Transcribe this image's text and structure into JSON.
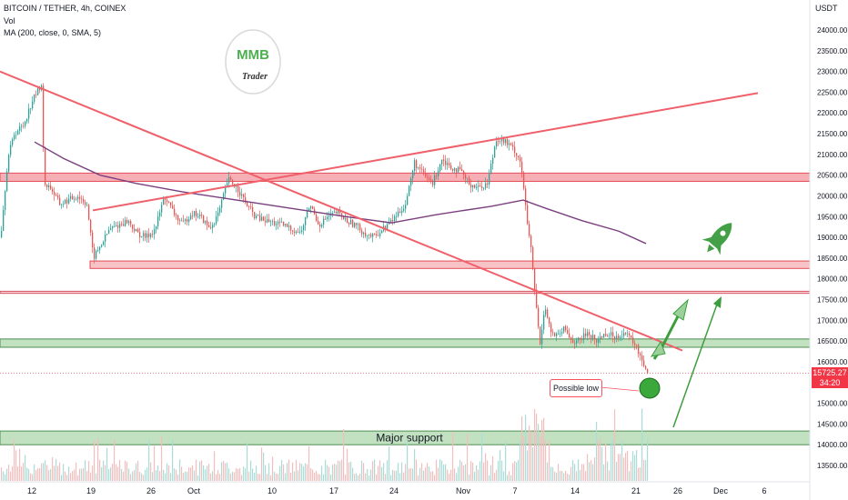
{
  "header": {
    "symbol_line": "BITCOIN / TETHER, 4h, COINEX",
    "volume_label": "Vol",
    "indicator_line": "MA (200, close, 0, SMA, 5)"
  },
  "logo": {
    "text_top": "MMB",
    "text_bottom": "Trader"
  },
  "price_scale": {
    "currency": "USDT",
    "ticks": [
      "24000.00",
      "23500.00",
      "23000.00",
      "22500.00",
      "22000.00",
      "21500.00",
      "21000.00",
      "20500.00",
      "20000.00",
      "19500.00",
      "19000.00",
      "18500.00",
      "18000.00",
      "17500.00",
      "17000.00",
      "16500.00",
      "16000.00",
      "15500.00",
      "15000.00",
      "14500.00",
      "14000.00",
      "13500.00"
    ],
    "current_price": "15725.27",
    "countdown": "34:20"
  },
  "time_scale": {
    "ticks": [
      "12",
      "19",
      "26",
      "Oct",
      "10",
      "17",
      "24",
      "Nov",
      "7",
      "14",
      "21",
      "26",
      "Dec",
      "6"
    ]
  },
  "annotations": {
    "possible_low": "Possible low",
    "major_support": "Major support"
  },
  "colors": {
    "candle_up": "#26a69a",
    "candle_down": "#ef5350",
    "line_red": "#f0606a",
    "zone_red_fill": "#f7b9bd",
    "zone_green_fill": "#b7dcb7",
    "ma_color": "#7b3f7f",
    "arrow_green": "#3d9e3d",
    "current_price": "#f23645"
  },
  "chart_data": {
    "type": "candlestick",
    "symbol": "BITCOIN / TETHER",
    "timeframe": "4h",
    "exchange": "COINEX",
    "y_range": [
      13300,
      24300
    ],
    "current_price": 15725.27,
    "zones": [
      {
        "kind": "resistance",
        "low": 20350,
        "high": 20550
      },
      {
        "kind": "support",
        "low": 18250,
        "high": 18430
      },
      {
        "kind": "line",
        "low": 17650,
        "high": 17700
      },
      {
        "kind": "support",
        "low": 16350,
        "high": 16550
      },
      {
        "kind": "support",
        "low": 14000,
        "high": 14330,
        "label": "Major support"
      }
    ],
    "price_path": [
      [
        0,
        19000
      ],
      [
        8,
        20900
      ],
      [
        15,
        21500
      ],
      [
        25,
        21700
      ],
      [
        35,
        22300
      ],
      [
        45,
        22700
      ],
      [
        48,
        20300
      ],
      [
        55,
        20200
      ],
      [
        65,
        19800
      ],
      [
        75,
        19900
      ],
      [
        85,
        20000
      ],
      [
        95,
        19800
      ],
      [
        102,
        18500
      ],
      [
        110,
        18800
      ],
      [
        120,
        19200
      ],
      [
        130,
        19300
      ],
      [
        140,
        19400
      ],
      [
        150,
        19100
      ],
      [
        160,
        19000
      ],
      [
        170,
        19200
      ],
      [
        180,
        20000
      ],
      [
        190,
        19600
      ],
      [
        200,
        19300
      ],
      [
        210,
        19600
      ],
      [
        220,
        19500
      ],
      [
        230,
        19200
      ],
      [
        240,
        19600
      ],
      [
        250,
        20400
      ],
      [
        260,
        20200
      ],
      [
        270,
        19800
      ],
      [
        280,
        19500
      ],
      [
        290,
        19400
      ],
      [
        300,
        19350
      ],
      [
        310,
        19300
      ],
      [
        320,
        19200
      ],
      [
        330,
        19100
      ],
      [
        340,
        19800
      ],
      [
        350,
        19300
      ],
      [
        360,
        19500
      ],
      [
        370,
        19600
      ],
      [
        380,
        19400
      ],
      [
        390,
        19300
      ],
      [
        400,
        19100
      ],
      [
        410,
        19000
      ],
      [
        420,
        19200
      ],
      [
        430,
        19400
      ],
      [
        445,
        19800
      ],
      [
        455,
        20800
      ],
      [
        465,
        20500
      ],
      [
        475,
        20300
      ],
      [
        485,
        20900
      ],
      [
        495,
        20700
      ],
      [
        505,
        20600
      ],
      [
        515,
        20300
      ],
      [
        525,
        20200
      ],
      [
        535,
        20300
      ],
      [
        545,
        21400
      ],
      [
        555,
        21300
      ],
      [
        565,
        21100
      ],
      [
        572,
        20800
      ],
      [
        578,
        19500
      ],
      [
        583,
        18700
      ],
      [
        588,
        17500
      ],
      [
        593,
        16400
      ],
      [
        598,
        17400
      ],
      [
        605,
        16700
      ],
      [
        612,
        16600
      ],
      [
        620,
        16800
      ],
      [
        628,
        16500
      ],
      [
        636,
        16500
      ],
      [
        645,
        16700
      ],
      [
        655,
        16500
      ],
      [
        665,
        16700
      ],
      [
        675,
        16600
      ],
      [
        685,
        16700
      ],
      [
        695,
        16500
      ],
      [
        702,
        16200
      ],
      [
        708,
        15900
      ],
      [
        712,
        15720
      ]
    ]
  }
}
